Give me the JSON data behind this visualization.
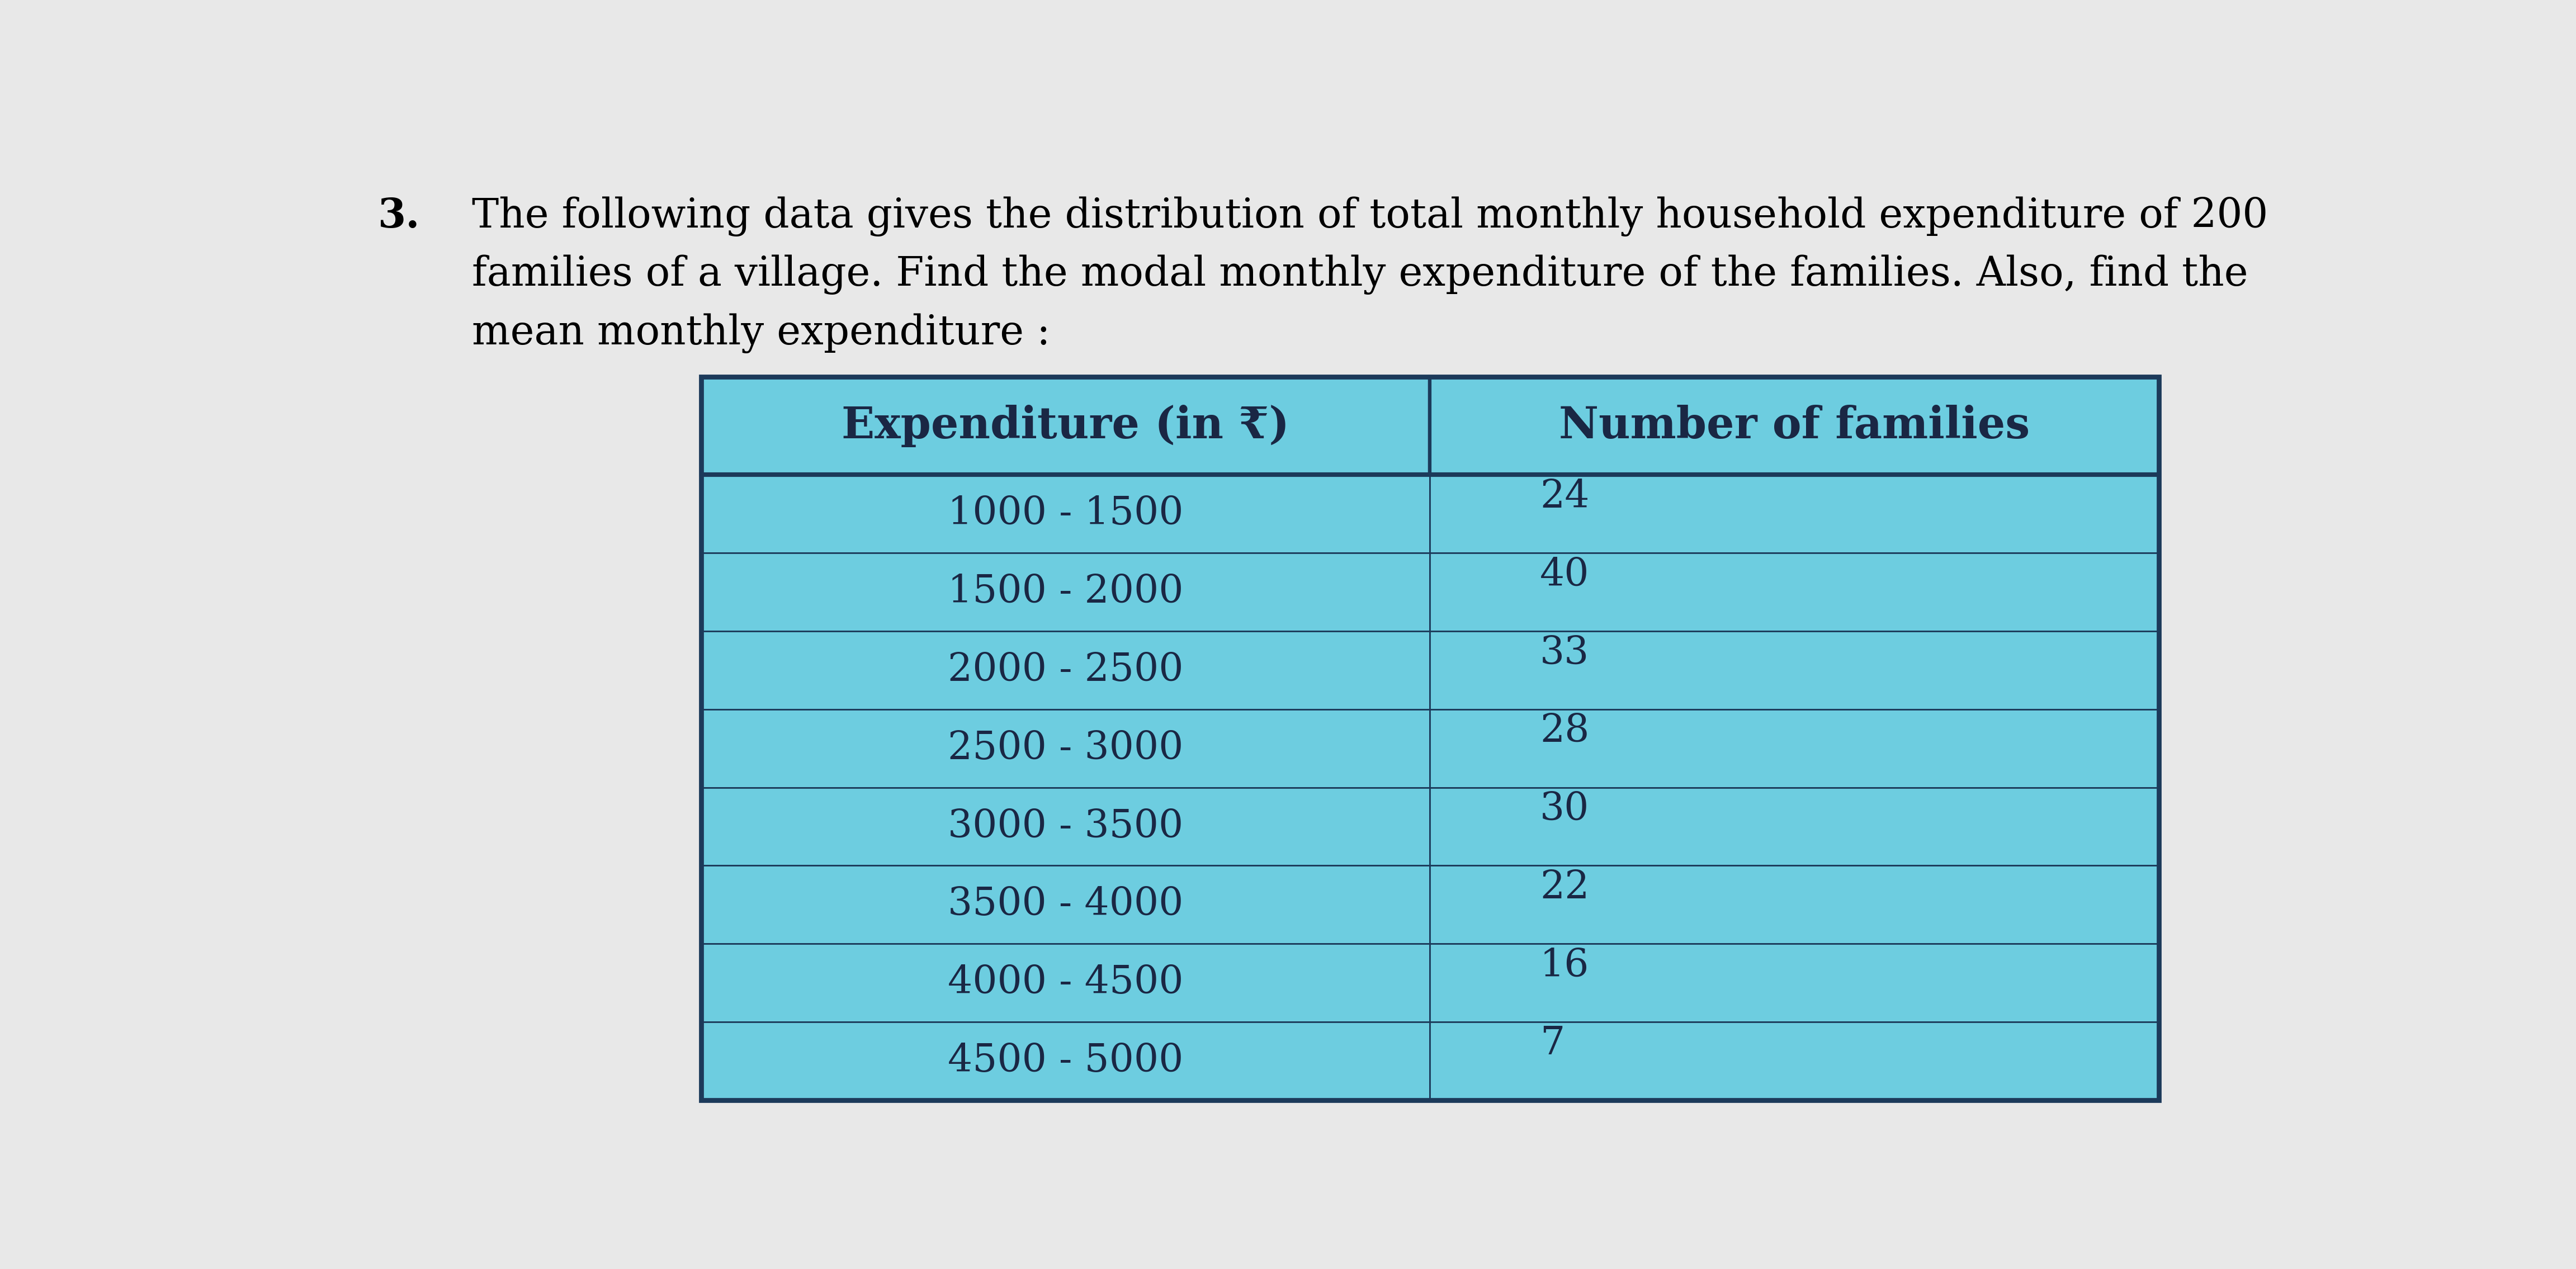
{
  "title_number": "3.",
  "title_line1": "The following data gives the distribution of total monthly household expenditure of 200",
  "title_line2": "families of a village. Find the modal monthly expenditure of the families. Also, find the",
  "title_line3": "mean monthly expenditure :",
  "col1_header": "Expenditure (in ₹)",
  "col2_header": "Number of families",
  "rows": [
    [
      "1000 - 1500",
      "24"
    ],
    [
      "1500 - 2000",
      "40"
    ],
    [
      "2000 - 2500",
      "33"
    ],
    [
      "2500 - 3000",
      "28"
    ],
    [
      "3000 - 3500",
      "30"
    ],
    [
      "3500 - 4000",
      "22"
    ],
    [
      "4000 - 4500",
      "16"
    ],
    [
      "4500 - 5000",
      "7"
    ]
  ],
  "table_bg_color": "#6DCDE0",
  "table_border_color": "#1C3A5A",
  "text_color": "#1A2744",
  "page_bg_color": "#E8E8E8",
  "title_fontsize": 52,
  "header_fontsize": 56,
  "cell_fontsize": 50,
  "fig_width": 46.07,
  "fig_height": 22.7
}
